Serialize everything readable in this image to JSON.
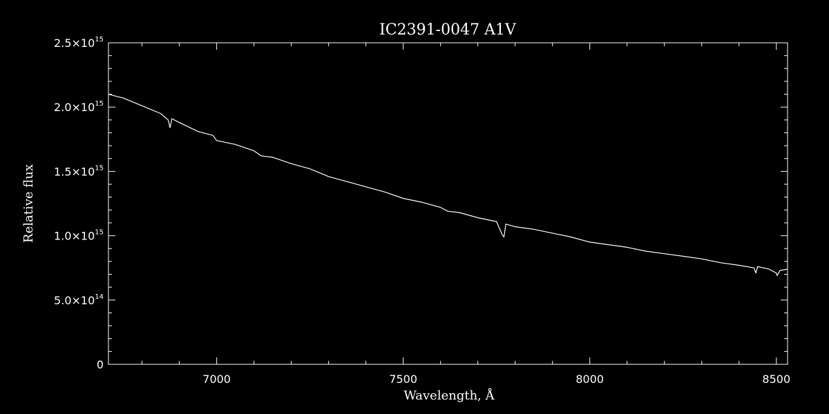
{
  "chart_data": {
    "type": "line",
    "title": "IC2391-0047  A1V",
    "xlabel": "Wavelength, Å",
    "ylabel": "Relative flux",
    "xlim": [
      6710,
      8530
    ],
    "ylim": [
      0,
      2500000000000000.0
    ],
    "x_ticks": [
      {
        "value": 7000,
        "label": "7000"
      },
      {
        "value": 7500,
        "label": "7500"
      },
      {
        "value": 8000,
        "label": "8000"
      },
      {
        "value": 8500,
        "label": "8500"
      }
    ],
    "y_ticks": [
      {
        "value": 0,
        "mantissa": "0",
        "exponent": ""
      },
      {
        "value": 500000000000000.0,
        "mantissa": "5.0×10",
        "exponent": "14"
      },
      {
        "value": 1000000000000000.0,
        "mantissa": "1.0×10",
        "exponent": "15"
      },
      {
        "value": 1500000000000000.0,
        "mantissa": "1.5×10",
        "exponent": "15"
      },
      {
        "value": 2000000000000000.0,
        "mantissa": "2.0×10",
        "exponent": "15"
      },
      {
        "value": 2500000000000000.0,
        "mantissa": "2.5×10",
        "exponent": "15"
      }
    ],
    "grid": false,
    "colors": {
      "background": "#000000",
      "foreground": "#ffffff"
    },
    "series": [
      {
        "x": [
          6710,
          6750,
          6800,
          6850,
          6870,
          6875,
          6880,
          6900,
          6950,
          6990,
          7000,
          7050,
          7100,
          7120,
          7150,
          7200,
          7250,
          7300,
          7350,
          7400,
          7450,
          7500,
          7550,
          7600,
          7620,
          7650,
          7700,
          7750,
          7765,
          7770,
          7775,
          7800,
          7850,
          7900,
          7950,
          8000,
          8050,
          8100,
          8150,
          8200,
          8250,
          8300,
          8350,
          8400,
          8440,
          8445,
          8450,
          8480,
          8500,
          8502,
          8510,
          8530
        ],
        "y": [
          2100000000000000.0,
          2070000000000000.0,
          2010000000000000.0,
          1950000000000000.0,
          1900000000000000.0,
          1840000000000000.0,
          1910000000000000.0,
          1880000000000000.0,
          1810000000000000.0,
          1780000000000000.0,
          1740000000000000.0,
          1710000000000000.0,
          1660000000000000.0,
          1620000000000000.0,
          1610000000000000.0,
          1560000000000000.0,
          1520000000000000.0,
          1460000000000000.0,
          1420000000000000.0,
          1380000000000000.0,
          1340000000000000.0,
          1290000000000000.0,
          1260000000000000.0,
          1220000000000000.0,
          1190000000000000.0,
          1180000000000000.0,
          1140000000000000.0,
          1110000000000000.0,
          1010000000000000.0,
          990000000000000.0,
          1090000000000000.0,
          1070000000000000.0,
          1050000000000000.0,
          1020000000000000.0,
          990000000000000.0,
          950000000000000.0,
          930000000000000.0,
          910000000000000.0,
          880000000000000.0,
          860000000000000.0,
          840000000000000.0,
          820000000000000.0,
          790000000000000.0,
          770000000000000.0,
          750000000000000.0,
          710000000000000.0,
          760000000000000.0,
          740000000000000.0,
          710000000000000.0,
          690000000000000.0,
          730000000000000.0,
          740000000000000.0
        ]
      }
    ]
  }
}
